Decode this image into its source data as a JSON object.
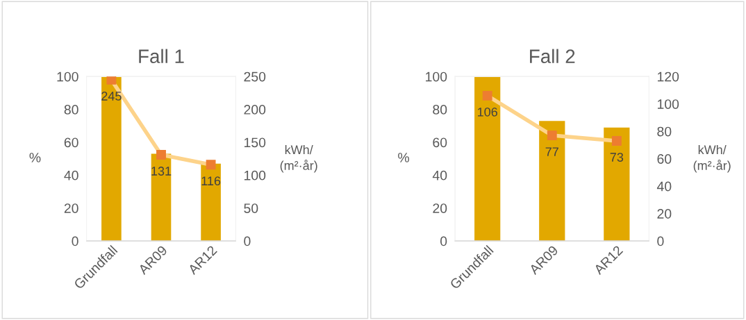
{
  "chart_data": [
    {
      "type": "bar",
      "title": "Fall 1",
      "ylabel": "%",
      "y2label": "kWh/\n(m²·år)",
      "categories": [
        "Grundfall",
        "AR09",
        "AR12"
      ],
      "ylim": [
        0,
        100
      ],
      "yticks": [
        0,
        20,
        40,
        60,
        80,
        100
      ],
      "y2lim": [
        0,
        250
      ],
      "y2ticks": [
        0,
        50,
        100,
        150,
        200,
        250
      ],
      "grid": false,
      "series": [
        {
          "color": "#e2a800",
          "values": [
            100,
            53,
            47
          ]
        },
        {
          "type": "line",
          "axis": "y2",
          "color": "#fdd38a",
          "colors": [
            "#ed7d31",
            "#ed7d31",
            "#ed7d31"
          ],
          "marker": "square",
          "values": [
            245,
            131,
            116
          ],
          "value_labels": [
            "245",
            "131",
            "116"
          ]
        }
      ]
    },
    {
      "type": "bar",
      "title": "Fall 2",
      "ylabel": "%",
      "y2label": "kWh/\n(m²·år)",
      "categories": [
        "Grundfall",
        "AR09",
        "AR12"
      ],
      "ylim": [
        0,
        100
      ],
      "yticks": [
        0,
        20,
        40,
        60,
        80,
        100
      ],
      "y2lim": [
        0,
        120
      ],
      "y2ticks": [
        0,
        20,
        40,
        60,
        80,
        100,
        120
      ],
      "grid": false,
      "series": [
        {
          "color": "#e2a800",
          "values": [
            100,
            73,
            69
          ]
        },
        {
          "type": "line",
          "axis": "y2",
          "color": "#fdd38a",
          "colors": [
            "#ed7d31",
            "#ed7d31",
            "#ed7d31"
          ],
          "marker": "square",
          "values": [
            106,
            77,
            73
          ],
          "value_labels": [
            "106",
            "77",
            "73"
          ]
        }
      ]
    }
  ]
}
